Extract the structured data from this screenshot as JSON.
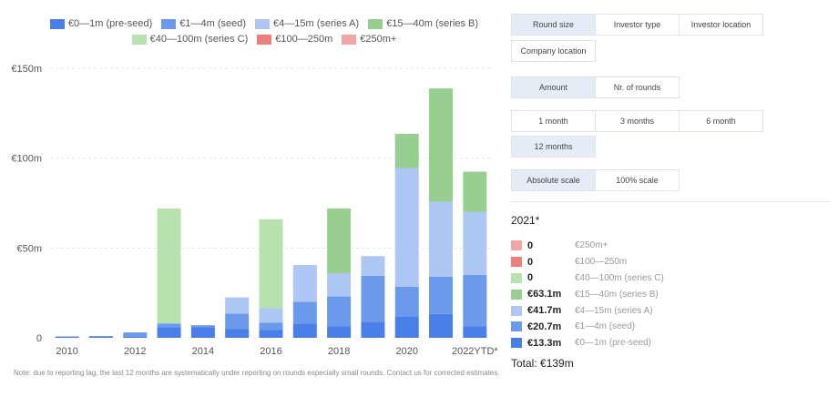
{
  "legend_items": [
    {
      "label": "€0—1m (pre-seed)",
      "color": "#4a7ee8"
    },
    {
      "label": "€1—4m (seed)",
      "color": "#6b99ec"
    },
    {
      "label": "€4—15m (series A)",
      "color": "#adc6f4"
    },
    {
      "label": "€15—40m (series B)",
      "color": "#96cf90"
    },
    {
      "label": "€40—100m (series C)",
      "color": "#b8e1b0"
    },
    {
      "label": "€100—250m",
      "color": "#ec7f7c"
    },
    {
      "label": "€250m+",
      "color": "#f2a5a3"
    }
  ],
  "chart_data": {
    "type": "bar",
    "stacked": true,
    "categories": [
      "2010",
      "2011",
      "2012",
      "2013",
      "2014",
      "2015",
      "2016",
      "2017",
      "2018",
      "2019",
      "2020",
      "2021",
      "2022YTD*"
    ],
    "x_tick_labels": [
      "2010",
      "",
      "2012",
      "",
      "2014",
      "",
      "2016",
      "",
      "2018",
      "",
      "2020",
      "",
      "2022YTD*"
    ],
    "ylim": [
      0,
      150
    ],
    "y_ticks": [
      0,
      50,
      100,
      150
    ],
    "y_tick_labels": [
      "0",
      "€50m",
      "€100m",
      "€150m"
    ],
    "grid": true,
    "series": [
      {
        "name": "€0—1m (pre-seed)",
        "color": "#4a7ee8",
        "values": [
          0.5,
          0.5,
          0.5,
          6,
          6,
          5,
          4.5,
          8,
          6.5,
          9,
          12,
          13.3,
          6.5
        ]
      },
      {
        "name": "€1—4m (seed)",
        "color": "#6b99ec",
        "values": [
          0.3,
          0.5,
          2.5,
          2,
          1,
          8.5,
          4,
          12,
          16.5,
          25.5,
          16.5,
          20.7,
          28.5
        ]
      },
      {
        "name": "€4—15m (series A)",
        "color": "#adc6f4",
        "values": [
          0,
          0,
          0,
          0,
          0,
          9,
          8,
          20.5,
          13,
          11,
          66,
          41.7,
          35
        ]
      },
      {
        "name": "€15—40m (series B)",
        "color": "#96cf90",
        "values": [
          0,
          0,
          0,
          0,
          0,
          0,
          0,
          0,
          36,
          0,
          19,
          63.1,
          22.5
        ]
      },
      {
        "name": "€40—100m (series C)",
        "color": "#b8e1b0",
        "values": [
          0,
          0,
          0,
          64,
          0,
          0,
          49.5,
          0,
          0,
          0,
          0,
          0,
          0
        ]
      },
      {
        "name": "€100—250m",
        "color": "#ec7f7c",
        "values": [
          0,
          0,
          0,
          0,
          0,
          0,
          0,
          0,
          0,
          0,
          0,
          0,
          0
        ]
      },
      {
        "name": "€250m+",
        "color": "#f2a5a3",
        "values": [
          0,
          0,
          0,
          0,
          0,
          0,
          0,
          0,
          0,
          0,
          0,
          0,
          0
        ]
      }
    ]
  },
  "note": "Note: due to reporting lag, the last 12 months are systematically under reporting on rounds especially small rounds. Contact us for corrected estimates.",
  "panel": {
    "row1": [
      "Round size",
      "Investor type",
      "Investor location"
    ],
    "row1b": [
      "Company location"
    ],
    "row2": [
      "Amount",
      "Nr. of rounds"
    ],
    "row3": [
      "1 month",
      "3 months",
      "6 month"
    ],
    "row3b": [
      "12 months"
    ],
    "row4": [
      "Absolute scale",
      "100% scale"
    ]
  },
  "summary": {
    "title": "2021*",
    "items": [
      {
        "value": "0",
        "label": "€250m+",
        "color": "#f2a5a3"
      },
      {
        "value": "0",
        "label": "€100—250m",
        "color": "#ec7f7c"
      },
      {
        "value": "0",
        "label": "€40—100m (series C)",
        "color": "#b8e1b0"
      },
      {
        "value": "€63.1m",
        "label": "€15—40m (series B)",
        "color": "#96cf90"
      },
      {
        "value": "€41.7m",
        "label": "€4—15m (series A)",
        "color": "#adc6f4"
      },
      {
        "value": "€20.7m",
        "label": "€1—4m (seed)",
        "color": "#6b99ec"
      },
      {
        "value": "€13.3m",
        "label": "€0—1m (pre-seed)",
        "color": "#4a7ee8"
      }
    ],
    "total": "Total: €139m"
  }
}
